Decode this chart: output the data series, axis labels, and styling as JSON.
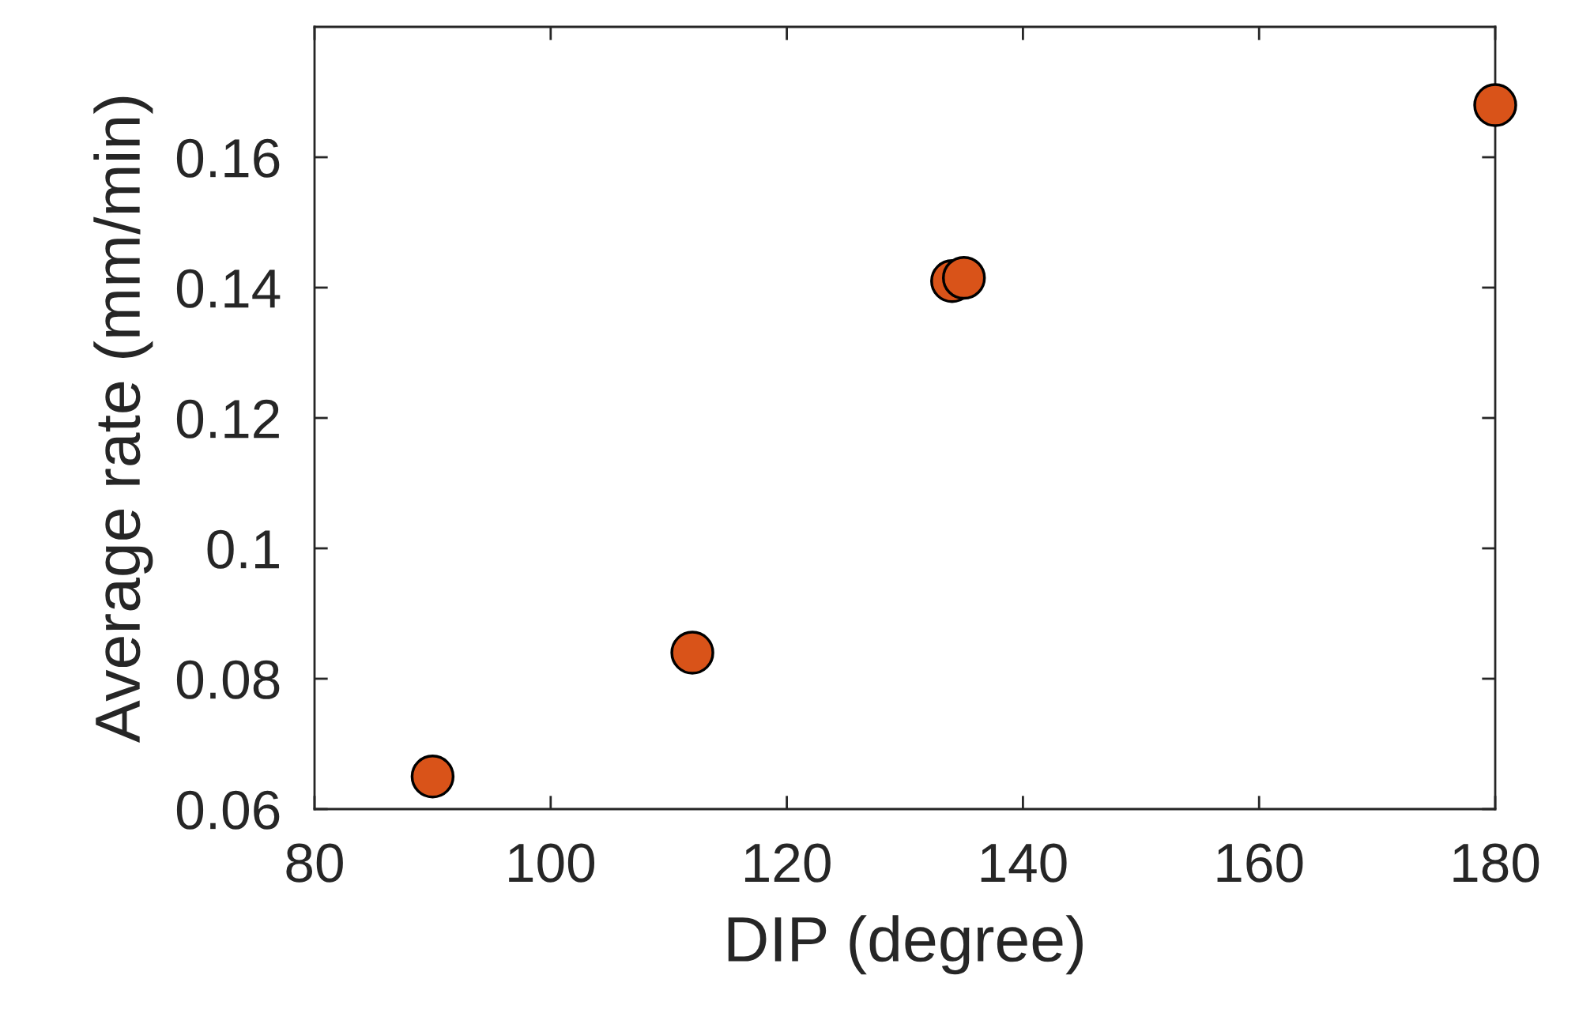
{
  "chart_data": {
    "type": "scatter",
    "xlabel": "DIP (degree)",
    "ylabel": "Average rate (mm/min)",
    "x": [
      90,
      112,
      134,
      135,
      180
    ],
    "series": [
      {
        "color": "#d95319",
        "values": [
          0.065,
          0.084,
          0.141,
          0.1415,
          0.168
        ]
      }
    ],
    "xlim": [
      80,
      180
    ],
    "xticks": [
      80,
      100,
      120,
      140,
      160,
      180
    ],
    "ylim": [
      0.06,
      0.18
    ],
    "yticks": [
      0.06,
      0.08,
      {
        "value": 0.1,
        "label": "0.1"
      },
      0.12,
      0.14,
      0.16
    ],
    "marker": "circle",
    "grid": false
  }
}
